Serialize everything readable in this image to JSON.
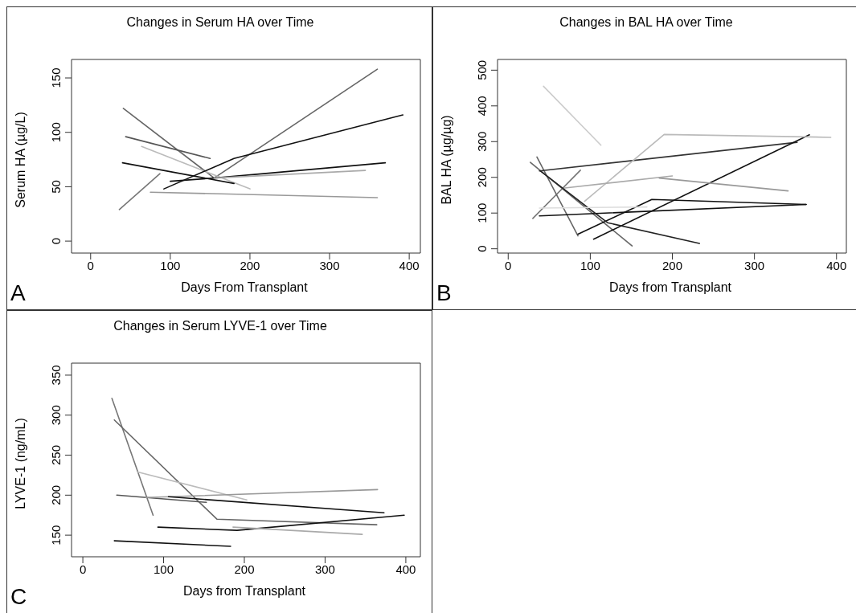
{
  "chart_data": [
    {
      "type": "line",
      "title": "Changes in Serum HA over Time",
      "xlabel": "Days From Transplant",
      "ylabel": "Serum HA (µg/L)",
      "xlim": [
        -24,
        414
      ],
      "ylim": [
        -11,
        167
      ],
      "xticks": [
        0,
        100,
        200,
        300,
        400
      ],
      "yticks": [
        0,
        50,
        100,
        150
      ],
      "grid": false,
      "marker": "none",
      "line_style": "solid",
      "annotations": [
        "A"
      ],
      "series": [
        {
          "color": "#777777",
          "x": [
            36,
            87
          ],
          "values": [
            29,
            62
          ]
        },
        {
          "color": "#666666",
          "x": [
            41,
            155,
            360
          ],
          "values": [
            122,
            58,
            158
          ]
        },
        {
          "color": "#555555",
          "x": [
            44,
            150
          ],
          "values": [
            96,
            76
          ]
        },
        {
          "color": "#bbbbbb",
          "x": [
            64,
            200
          ],
          "values": [
            87,
            48
          ]
        },
        {
          "color": "#111111",
          "x": [
            40,
            180
          ],
          "values": [
            72,
            53
          ]
        },
        {
          "color": "#111111",
          "x": [
            92,
            180,
            392
          ],
          "values": [
            48,
            76,
            116
          ]
        },
        {
          "color": "#111111",
          "x": [
            100,
            155,
            370
          ],
          "values": [
            55,
            58,
            72
          ]
        },
        {
          "color": "#999999",
          "x": [
            75,
            360
          ],
          "values": [
            45,
            40
          ]
        },
        {
          "color": "#aaaaaa",
          "x": [
            155,
            345
          ],
          "values": [
            58,
            65
          ]
        }
      ]
    },
    {
      "type": "line",
      "title": "Changes in BAL HA over Time",
      "xlabel": "Days from Transplant",
      "ylabel": "BAL HA (µg/µg)",
      "xlim": [
        -13,
        412
      ],
      "ylim": [
        -12,
        530
      ],
      "xticks": [
        0,
        100,
        200,
        300,
        400
      ],
      "yticks": [
        0,
        100,
        200,
        300,
        400,
        500
      ],
      "grid": false,
      "marker": "none",
      "line_style": "solid",
      "annotations": [
        "B"
      ],
      "series": [
        {
          "color": "#cccccc",
          "x": [
            43,
            113
          ],
          "values": [
            455,
            290
          ]
        },
        {
          "color": "#777777",
          "x": [
            30,
            88
          ],
          "values": [
            85,
            220
          ]
        },
        {
          "color": "#666666",
          "x": [
            35,
            85
          ],
          "values": [
            257,
            36
          ]
        },
        {
          "color": "#666666",
          "x": [
            27,
            151
          ],
          "values": [
            242,
            8
          ]
        },
        {
          "color": "#333333",
          "x": [
            38,
            352
          ],
          "values": [
            218,
            298
          ]
        },
        {
          "color": "#111111",
          "x": [
            85,
            175,
            363
          ],
          "values": [
            41,
            138,
            124
          ]
        },
        {
          "color": "#111111",
          "x": [
            38,
            363
          ],
          "values": [
            92,
            124
          ]
        },
        {
          "color": "#111111",
          "x": [
            104,
            367
          ],
          "values": [
            27,
            319
          ]
        },
        {
          "color": "#222222",
          "x": [
            39,
            121,
            233
          ],
          "values": [
            218,
            73,
            15
          ]
        },
        {
          "color": "#dddddd",
          "x": [
            38,
            169
          ],
          "values": [
            114,
            117
          ]
        },
        {
          "color": "#bbbbbb",
          "x": [
            93,
            190,
            393
          ],
          "values": [
            133,
            320,
            312
          ]
        },
        {
          "color": "#aaaaaa",
          "x": [
            69,
            200
          ],
          "values": [
            170,
            204
          ]
        },
        {
          "color": "#999999",
          "x": [
            184,
            341
          ],
          "values": [
            198,
            162
          ]
        }
      ]
    },
    {
      "type": "line",
      "title": "Changes in Serum LYVE-1 over Time",
      "xlabel": "Days from Transplant",
      "ylabel": "LYVE-1 (ng/mL)",
      "xlim": [
        -14,
        418
      ],
      "ylim": [
        123,
        365
      ],
      "xticks": [
        0,
        100,
        200,
        300,
        400
      ],
      "yticks": [
        150,
        200,
        250,
        300,
        350
      ],
      "grid": false,
      "marker": "none",
      "line_style": "solid",
      "annotations": [
        "C"
      ],
      "series": [
        {
          "color": "#777777",
          "x": [
            36,
            87
          ],
          "values": [
            321,
            175
          ]
        },
        {
          "color": "#666666",
          "x": [
            39,
            166,
            364
          ],
          "values": [
            294,
            170,
            163
          ]
        },
        {
          "color": "#bbbbbb",
          "x": [
            68,
            203
          ],
          "values": [
            229,
            194
          ]
        },
        {
          "color": "#555555",
          "x": [
            42,
            153
          ],
          "values": [
            200,
            191
          ]
        },
        {
          "color": "#999999",
          "x": [
            78,
            365
          ],
          "values": [
            197,
            207
          ]
        },
        {
          "color": "#111111",
          "x": [
            106,
            373
          ],
          "values": [
            198,
            178
          ]
        },
        {
          "color": "#111111",
          "x": [
            93,
            191,
            398
          ],
          "values": [
            160,
            156,
            175
          ]
        },
        {
          "color": "#aaaaaa",
          "x": [
            186,
            346
          ],
          "values": [
            160,
            151
          ]
        },
        {
          "color": "#111111",
          "x": [
            39,
            183
          ],
          "values": [
            143,
            136
          ]
        }
      ]
    }
  ]
}
